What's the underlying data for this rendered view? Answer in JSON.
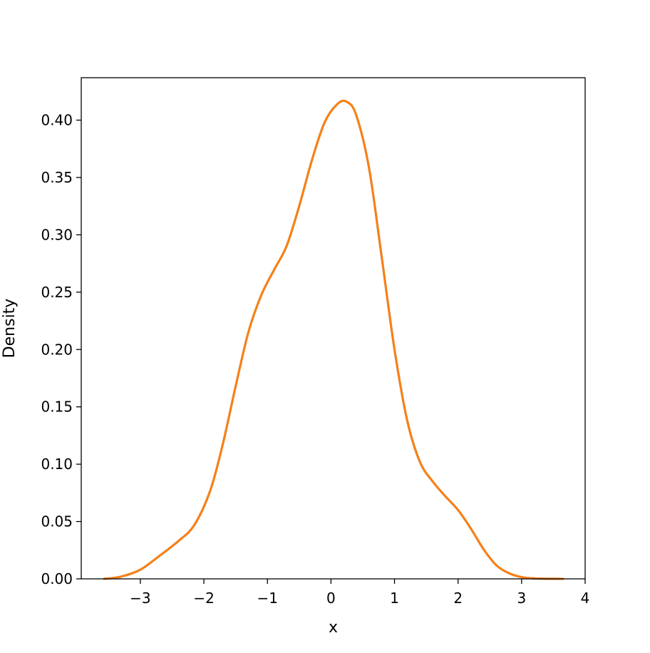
{
  "chart_data": {
    "type": "line",
    "title": "",
    "xlabel": "x",
    "ylabel": "Density",
    "xlim": [
      -3.93,
      4.0
    ],
    "ylim": [
      0.0,
      0.437
    ],
    "xticks": [
      -3,
      -2,
      -1,
      0,
      1,
      2,
      3,
      4
    ],
    "xtick_labels": [
      "−3",
      "−2",
      "−1",
      "0",
      "1",
      "2",
      "3",
      "4"
    ],
    "yticks": [
      0.0,
      0.05,
      0.1,
      0.15,
      0.2,
      0.25,
      0.3,
      0.35,
      0.4
    ],
    "ytick_labels": [
      "0.00",
      "0.05",
      "0.10",
      "0.15",
      "0.20",
      "0.25",
      "0.30",
      "0.35",
      "0.40"
    ],
    "grid": false,
    "series": [
      {
        "color": "#1f77b4",
        "x": [
          -3.57,
          -3.3,
          -3.0,
          -2.7,
          -2.4,
          -2.15,
          -1.9,
          -1.7,
          -1.5,
          -1.3,
          -1.1,
          -0.9,
          -0.7,
          -0.5,
          -0.3,
          -0.1,
          0.1,
          0.25,
          0.4,
          0.6,
          0.8,
          1.0,
          1.2,
          1.4,
          1.6,
          1.8,
          2.0,
          2.2,
          2.4,
          2.6,
          2.8,
          3.0,
          3.2,
          3.4,
          3.65
        ],
        "y": [
          0.0,
          0.002,
          0.008,
          0.02,
          0.033,
          0.047,
          0.077,
          0.118,
          0.168,
          0.215,
          0.247,
          0.269,
          0.29,
          0.325,
          0.365,
          0.398,
          0.414,
          0.416,
          0.404,
          0.358,
          0.28,
          0.2,
          0.138,
          0.102,
          0.085,
          0.072,
          0.06,
          0.044,
          0.026,
          0.012,
          0.005,
          0.0015,
          0.0004,
          0.0001,
          0.0
        ]
      },
      {
        "color": "#ff7f0e",
        "x": [
          -3.57,
          -3.3,
          -3.0,
          -2.7,
          -2.4,
          -2.15,
          -1.9,
          -1.7,
          -1.5,
          -1.3,
          -1.1,
          -0.9,
          -0.7,
          -0.5,
          -0.3,
          -0.1,
          0.1,
          0.25,
          0.4,
          0.6,
          0.8,
          1.0,
          1.2,
          1.4,
          1.6,
          1.8,
          2.0,
          2.2,
          2.4,
          2.6,
          2.8,
          3.0,
          3.2,
          3.4,
          3.65
        ],
        "y": [
          0.0,
          0.002,
          0.008,
          0.02,
          0.033,
          0.047,
          0.077,
          0.118,
          0.168,
          0.215,
          0.247,
          0.269,
          0.29,
          0.325,
          0.365,
          0.398,
          0.414,
          0.416,
          0.404,
          0.358,
          0.28,
          0.2,
          0.138,
          0.102,
          0.085,
          0.072,
          0.06,
          0.044,
          0.026,
          0.012,
          0.005,
          0.0015,
          0.0004,
          0.0001,
          0.0
        ]
      }
    ]
  }
}
